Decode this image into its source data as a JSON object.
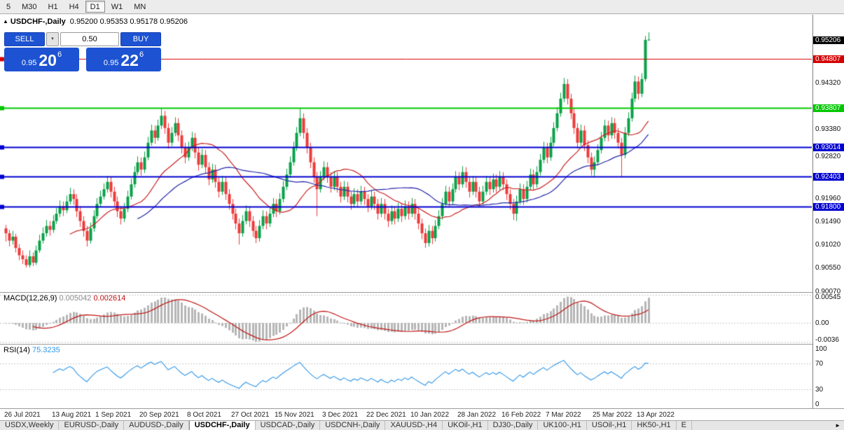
{
  "icons": {
    "chart_arrow": "▲",
    "chevron_down": "▼",
    "tabs_scroll_right": "►"
  },
  "toolbar": {
    "timeframes": [
      "5",
      "M30",
      "H1",
      "H4",
      "D1",
      "W1",
      "MN"
    ],
    "active": "D1"
  },
  "chart": {
    "title_symbol": "USDCHF-,Daily",
    "title_ohlc": "0.95200 0.95353 0.95178 0.95206",
    "trade_panel": {
      "sell_label": "SELL",
      "buy_label": "BUY",
      "volume": "0.50",
      "bid_small": "0.95",
      "bid_big": "20",
      "bid_sup": "6",
      "ask_small": "0.95",
      "ask_big": "22",
      "ask_sup": "6",
      "panel_color": "#1d53d2"
    },
    "current_price": 0.95206,
    "current_price_bg": "#000000",
    "hlines": [
      {
        "price": 0.94807,
        "color": "#d40000",
        "width": 1
      },
      {
        "price": 0.93807,
        "color": "#00c800",
        "width": 2
      },
      {
        "price": 0.93014,
        "color": "#0000d0",
        "width": 2
      },
      {
        "price": 0.92403,
        "color": "#0000d0",
        "width": 2
      },
      {
        "price": 0.918,
        "color": "#0000d0",
        "width": 2
      }
    ],
    "scale_plain": [
      0.9432,
      0.9338,
      0.9282,
      0.9196,
      0.9149,
      0.9102,
      0.9055,
      0.9007
    ]
  },
  "chart_data": {
    "type": "candlestick",
    "title": "USDCHF-,Daily",
    "ylim": [
      0.9005,
      0.95714
    ],
    "up_color": "#0aa148",
    "down_color": "#ee3b3b",
    "x_labels": [
      "26 Jul 2021",
      "13 Aug 2021",
      "1 Sep 2021",
      "20 Sep 2021",
      "8 Oct 2021",
      "27 Oct 2021",
      "15 Nov 2021",
      "3 Dec 2021",
      "22 Dec 2021",
      "10 Jan 2022",
      "28 Jan 2022",
      "16 Feb 2022",
      "7 Mar 2022",
      "25 Mar 2022",
      "13 Apr 2022"
    ],
    "x_label_indices": [
      0,
      14,
      27,
      40,
      54,
      67,
      80,
      94,
      107,
      120,
      134,
      147,
      160,
      174,
      187
    ],
    "overlays": [
      {
        "name": "MA fast",
        "type": "sma",
        "period": 20,
        "color": "#c82020"
      },
      {
        "name": "MA slow",
        "type": "sma",
        "period": 40,
        "color": "#2525a8"
      }
    ],
    "ohlc": [
      [
        0.9135,
        0.9142,
        0.9108,
        0.9125
      ],
      [
        0.9125,
        0.9132,
        0.9098,
        0.911
      ],
      [
        0.911,
        0.913,
        0.9102,
        0.9118
      ],
      [
        0.9118,
        0.9124,
        0.9086,
        0.9095
      ],
      [
        0.9095,
        0.9103,
        0.907,
        0.908
      ],
      [
        0.908,
        0.909,
        0.9062,
        0.9072
      ],
      [
        0.9072,
        0.908,
        0.9055,
        0.906
      ],
      [
        0.906,
        0.909,
        0.9055,
        0.9078
      ],
      [
        0.9078,
        0.9086,
        0.9058,
        0.9065
      ],
      [
        0.9065,
        0.91,
        0.906,
        0.909
      ],
      [
        0.909,
        0.9122,
        0.9085,
        0.911
      ],
      [
        0.911,
        0.9137,
        0.9104,
        0.9125
      ],
      [
        0.9125,
        0.9152,
        0.9118,
        0.914
      ],
      [
        0.914,
        0.915,
        0.912,
        0.9132
      ],
      [
        0.9132,
        0.9162,
        0.9126,
        0.915
      ],
      [
        0.915,
        0.9177,
        0.9144,
        0.9165
      ],
      [
        0.9165,
        0.9192,
        0.9158,
        0.918
      ],
      [
        0.918,
        0.919,
        0.916,
        0.9172
      ],
      [
        0.9172,
        0.9202,
        0.9166,
        0.919
      ],
      [
        0.919,
        0.9218,
        0.9184,
        0.9205
      ],
      [
        0.9205,
        0.9215,
        0.9183,
        0.9195
      ],
      [
        0.9195,
        0.9205,
        0.9158,
        0.917
      ],
      [
        0.917,
        0.918,
        0.9138,
        0.915
      ],
      [
        0.915,
        0.916,
        0.9118,
        0.913
      ],
      [
        0.913,
        0.914,
        0.9098,
        0.911
      ],
      [
        0.911,
        0.9147,
        0.9104,
        0.9135
      ],
      [
        0.9135,
        0.9172,
        0.9128,
        0.916
      ],
      [
        0.916,
        0.9197,
        0.9154,
        0.9185
      ],
      [
        0.9185,
        0.9212,
        0.9178,
        0.92
      ],
      [
        0.92,
        0.9227,
        0.9194,
        0.9215
      ],
      [
        0.9215,
        0.9242,
        0.9208,
        0.923
      ],
      [
        0.923,
        0.924,
        0.9198,
        0.921
      ],
      [
        0.921,
        0.922,
        0.9178,
        0.919
      ],
      [
        0.919,
        0.92,
        0.9158,
        0.917
      ],
      [
        0.917,
        0.918,
        0.9143,
        0.9155
      ],
      [
        0.9155,
        0.9187,
        0.9148,
        0.9175
      ],
      [
        0.9175,
        0.9212,
        0.9168,
        0.92
      ],
      [
        0.92,
        0.9237,
        0.9194,
        0.9225
      ],
      [
        0.9225,
        0.9262,
        0.9218,
        0.925
      ],
      [
        0.925,
        0.9282,
        0.9244,
        0.927
      ],
      [
        0.927,
        0.928,
        0.9243,
        0.9255
      ],
      [
        0.9255,
        0.9292,
        0.9248,
        0.928
      ],
      [
        0.928,
        0.9322,
        0.9274,
        0.931
      ],
      [
        0.931,
        0.9347,
        0.9304,
        0.9335
      ],
      [
        0.9335,
        0.9345,
        0.9308,
        0.932
      ],
      [
        0.932,
        0.9357,
        0.9314,
        0.9345
      ],
      [
        0.9345,
        0.938,
        0.9338,
        0.9365
      ],
      [
        0.9365,
        0.9375,
        0.9328,
        0.934
      ],
      [
        0.934,
        0.935,
        0.9298,
        0.931
      ],
      [
        0.931,
        0.9342,
        0.9303,
        0.933
      ],
      [
        0.933,
        0.9362,
        0.9323,
        0.935
      ],
      [
        0.935,
        0.936,
        0.9313,
        0.9325
      ],
      [
        0.9325,
        0.9335,
        0.9288,
        0.93
      ],
      [
        0.93,
        0.931,
        0.9268,
        0.928
      ],
      [
        0.928,
        0.9312,
        0.9273,
        0.93
      ],
      [
        0.93,
        0.9332,
        0.9293,
        0.932
      ],
      [
        0.932,
        0.933,
        0.9278,
        0.929
      ],
      [
        0.929,
        0.93,
        0.9253,
        0.9265
      ],
      [
        0.9265,
        0.9297,
        0.9258,
        0.9285
      ],
      [
        0.9285,
        0.9295,
        0.9248,
        0.926
      ],
      [
        0.926,
        0.927,
        0.9223,
        0.9235
      ],
      [
        0.9235,
        0.9267,
        0.9228,
        0.9255
      ],
      [
        0.9255,
        0.9265,
        0.9218,
        0.923
      ],
      [
        0.923,
        0.924,
        0.9198,
        0.921
      ],
      [
        0.921,
        0.9242,
        0.9203,
        0.923
      ],
      [
        0.923,
        0.924,
        0.9193,
        0.9205
      ],
      [
        0.9205,
        0.9215,
        0.9173,
        0.9185
      ],
      [
        0.9185,
        0.9195,
        0.9153,
        0.9165
      ],
      [
        0.9165,
        0.9175,
        0.9133,
        0.9145
      ],
      [
        0.9145,
        0.9155,
        0.9102,
        0.9125
      ],
      [
        0.9125,
        0.9162,
        0.9118,
        0.915
      ],
      [
        0.915,
        0.9182,
        0.9143,
        0.917
      ],
      [
        0.917,
        0.918,
        0.9138,
        0.915
      ],
      [
        0.915,
        0.916,
        0.9118,
        0.913
      ],
      [
        0.913,
        0.914,
        0.9105,
        0.9115
      ],
      [
        0.9115,
        0.9152,
        0.9108,
        0.914
      ],
      [
        0.914,
        0.9172,
        0.9133,
        0.916
      ],
      [
        0.916,
        0.917,
        0.9133,
        0.9145
      ],
      [
        0.9145,
        0.9177,
        0.9138,
        0.9165
      ],
      [
        0.9165,
        0.9197,
        0.9158,
        0.9185
      ],
      [
        0.9185,
        0.9195,
        0.9158,
        0.917
      ],
      [
        0.917,
        0.9207,
        0.9163,
        0.9195
      ],
      [
        0.9195,
        0.9232,
        0.9188,
        0.922
      ],
      [
        0.922,
        0.9257,
        0.9213,
        0.9245
      ],
      [
        0.9245,
        0.9282,
        0.9238,
        0.927
      ],
      [
        0.927,
        0.9312,
        0.9263,
        0.93
      ],
      [
        0.93,
        0.9342,
        0.9293,
        0.933
      ],
      [
        0.933,
        0.938,
        0.9323,
        0.936
      ],
      [
        0.936,
        0.937,
        0.9318,
        0.933
      ],
      [
        0.933,
        0.934,
        0.9288,
        0.93
      ],
      [
        0.93,
        0.931,
        0.9258,
        0.927
      ],
      [
        0.927,
        0.928,
        0.9228,
        0.924
      ],
      [
        0.924,
        0.925,
        0.916,
        0.9215
      ],
      [
        0.9215,
        0.9252,
        0.9208,
        0.924
      ],
      [
        0.924,
        0.9272,
        0.9233,
        0.926
      ],
      [
        0.926,
        0.927,
        0.9228,
        0.924
      ],
      [
        0.924,
        0.925,
        0.9208,
        0.922
      ],
      [
        0.922,
        0.9252,
        0.9213,
        0.924
      ],
      [
        0.924,
        0.925,
        0.9208,
        0.922
      ],
      [
        0.922,
        0.923,
        0.9188,
        0.92
      ],
      [
        0.92,
        0.9232,
        0.9193,
        0.922
      ],
      [
        0.922,
        0.923,
        0.9188,
        0.92
      ],
      [
        0.92,
        0.921,
        0.9173,
        0.9185
      ],
      [
        0.9185,
        0.9217,
        0.9178,
        0.9205
      ],
      [
        0.9205,
        0.9215,
        0.9178,
        0.919
      ],
      [
        0.919,
        0.9222,
        0.9183,
        0.921
      ],
      [
        0.921,
        0.922,
        0.9183,
        0.9195
      ],
      [
        0.9195,
        0.9205,
        0.9168,
        0.918
      ],
      [
        0.918,
        0.9212,
        0.9173,
        0.92
      ],
      [
        0.92,
        0.921,
        0.9173,
        0.9185
      ],
      [
        0.9185,
        0.9195,
        0.9153,
        0.9165
      ],
      [
        0.9165,
        0.9197,
        0.9158,
        0.9185
      ],
      [
        0.9185,
        0.9195,
        0.9153,
        0.9165
      ],
      [
        0.9165,
        0.9175,
        0.9138,
        0.915
      ],
      [
        0.915,
        0.9182,
        0.9143,
        0.917
      ],
      [
        0.917,
        0.918,
        0.9143,
        0.9155
      ],
      [
        0.9155,
        0.9187,
        0.9148,
        0.9175
      ],
      [
        0.9175,
        0.9185,
        0.9148,
        0.916
      ],
      [
        0.916,
        0.9192,
        0.9153,
        0.918
      ],
      [
        0.918,
        0.919,
        0.9153,
        0.9165
      ],
      [
        0.9165,
        0.9197,
        0.9158,
        0.9185
      ],
      [
        0.9185,
        0.9195,
        0.9153,
        0.9165
      ],
      [
        0.9165,
        0.9175,
        0.9133,
        0.9145
      ],
      [
        0.9145,
        0.9155,
        0.9113,
        0.9125
      ],
      [
        0.9125,
        0.9135,
        0.9095,
        0.9105
      ],
      [
        0.9105,
        0.9142,
        0.9098,
        0.913
      ],
      [
        0.913,
        0.914,
        0.9103,
        0.9115
      ],
      [
        0.9115,
        0.9152,
        0.9108,
        0.914
      ],
      [
        0.914,
        0.9172,
        0.9133,
        0.916
      ],
      [
        0.916,
        0.9197,
        0.9153,
        0.9185
      ],
      [
        0.9185,
        0.9222,
        0.9178,
        0.921
      ],
      [
        0.921,
        0.922,
        0.9178,
        0.919
      ],
      [
        0.919,
        0.9227,
        0.9183,
        0.9215
      ],
      [
        0.9215,
        0.9252,
        0.9208,
        0.924
      ],
      [
        0.924,
        0.925,
        0.9213,
        0.9225
      ],
      [
        0.9225,
        0.9262,
        0.9218,
        0.925
      ],
      [
        0.925,
        0.926,
        0.9218,
        0.923
      ],
      [
        0.923,
        0.924,
        0.9198,
        0.921
      ],
      [
        0.921,
        0.9242,
        0.9203,
        0.923
      ],
      [
        0.923,
        0.924,
        0.9198,
        0.921
      ],
      [
        0.921,
        0.922,
        0.9178,
        0.919
      ],
      [
        0.919,
        0.9222,
        0.9183,
        0.921
      ],
      [
        0.921,
        0.9242,
        0.9203,
        0.923
      ],
      [
        0.923,
        0.924,
        0.9203,
        0.9215
      ],
      [
        0.9215,
        0.9247,
        0.9208,
        0.9235
      ],
      [
        0.9235,
        0.9245,
        0.9208,
        0.922
      ],
      [
        0.922,
        0.9252,
        0.9213,
        0.924
      ],
      [
        0.924,
        0.925,
        0.9213,
        0.9225
      ],
      [
        0.9225,
        0.9235,
        0.9193,
        0.9205
      ],
      [
        0.9205,
        0.9215,
        0.9173,
        0.9185
      ],
      [
        0.9185,
        0.9195,
        0.9152,
        0.9165
      ],
      [
        0.9165,
        0.9202,
        0.915,
        0.919
      ],
      [
        0.919,
        0.9227,
        0.9183,
        0.9215
      ],
      [
        0.9215,
        0.9225,
        0.9183,
        0.9195
      ],
      [
        0.9195,
        0.9232,
        0.9188,
        0.922
      ],
      [
        0.922,
        0.9257,
        0.9213,
        0.9245
      ],
      [
        0.9245,
        0.9255,
        0.9213,
        0.9225
      ],
      [
        0.9225,
        0.9262,
        0.9218,
        0.925
      ],
      [
        0.925,
        0.9287,
        0.9243,
        0.9275
      ],
      [
        0.9275,
        0.9312,
        0.9268,
        0.93
      ],
      [
        0.93,
        0.931,
        0.9268,
        0.928
      ],
      [
        0.928,
        0.9322,
        0.9273,
        0.931
      ],
      [
        0.931,
        0.9352,
        0.9303,
        0.934
      ],
      [
        0.934,
        0.9382,
        0.9333,
        0.937
      ],
      [
        0.937,
        0.9412,
        0.9363,
        0.94
      ],
      [
        0.94,
        0.9442,
        0.9393,
        0.943
      ],
      [
        0.943,
        0.944,
        0.9388,
        0.94
      ],
      [
        0.94,
        0.941,
        0.9358,
        0.937
      ],
      [
        0.937,
        0.938,
        0.9328,
        0.934
      ],
      [
        0.934,
        0.935,
        0.9298,
        0.931
      ],
      [
        0.931,
        0.9347,
        0.9303,
        0.9335
      ],
      [
        0.9335,
        0.9345,
        0.9293,
        0.9305
      ],
      [
        0.9305,
        0.9315,
        0.9268,
        0.928
      ],
      [
        0.928,
        0.929,
        0.9243,
        0.9255
      ],
      [
        0.9255,
        0.9282,
        0.924,
        0.927
      ],
      [
        0.927,
        0.9307,
        0.9263,
        0.9295
      ],
      [
        0.9295,
        0.9332,
        0.9288,
        0.932
      ],
      [
        0.932,
        0.9357,
        0.9313,
        0.9345
      ],
      [
        0.9345,
        0.9355,
        0.9313,
        0.9325
      ],
      [
        0.9325,
        0.9362,
        0.9318,
        0.935
      ],
      [
        0.935,
        0.936,
        0.9318,
        0.933
      ],
      [
        0.933,
        0.934,
        0.9298,
        0.931
      ],
      [
        0.931,
        0.932,
        0.924,
        0.9285
      ],
      [
        0.9285,
        0.9342,
        0.9278,
        0.933
      ],
      [
        0.933,
        0.9372,
        0.9323,
        0.936
      ],
      [
        0.936,
        0.9412,
        0.9353,
        0.94
      ],
      [
        0.94,
        0.9447,
        0.9393,
        0.9435
      ],
      [
        0.9435,
        0.9445,
        0.9398,
        0.941
      ],
      [
        0.941,
        0.9452,
        0.9403,
        0.944
      ],
      [
        0.944,
        0.9528,
        0.9435,
        0.952
      ],
      [
        0.952,
        0.95353,
        0.95178,
        0.95206
      ]
    ],
    "indicators": [
      {
        "name": "MACD",
        "title": "MACD(12,26,9)",
        "value_main": "0.005042",
        "value_signal": "0.002614",
        "params": [
          12,
          26,
          9
        ],
        "ylim": [
          -0.004,
          0.0058
        ],
        "scale_labels": [
          "0.00545",
          "0.00",
          "-0.0036"
        ],
        "hist_color": "#b6b6b6",
        "signal_color": "#c01414",
        "value_main_color": "#8a8a8a"
      },
      {
        "name": "RSI",
        "title": "RSI(14)",
        "value": "75.3235",
        "period": 14,
        "ylim": [
          0,
          100
        ],
        "levels": [
          70,
          30
        ],
        "scale_labels": [
          "100",
          "70",
          "30",
          "0"
        ],
        "line_color": "#2f96e8"
      }
    ]
  },
  "tabs": {
    "items": [
      "USDX,Weekly",
      "EURUSD-,Daily",
      "AUDUSD-,Daily",
      "USDCHF-,Daily",
      "USDCAD-,Daily",
      "USDCNH-,Daily",
      "XAUUSD-,H4",
      "UKOil-,H1",
      "DJ30-,Daily",
      "UK100-,H1",
      "USOil-,H1",
      "HK50-,H1",
      "E"
    ],
    "active_index": 3
  }
}
